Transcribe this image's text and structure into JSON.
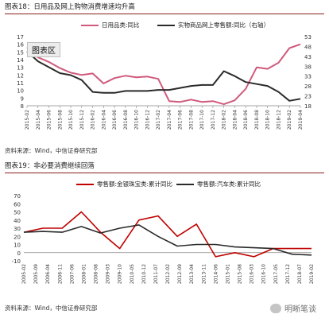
{
  "figures": [
    {
      "id": "fig18",
      "title": "图表18：日用品及网上购物消费增速均升高",
      "source": "资料来源：Wind，中信证券研究部",
      "legend": [
        {
          "label": "日用品类:同比",
          "color": "#d05a7c"
        },
        {
          "label": "实物商品网上零售额:同比（右轴）",
          "color": "#2a2a2a"
        }
      ]
    },
    {
      "id": "fig19",
      "title": "图表19：非必要消费继续回落",
      "source": "资料来源：Wind，中信证券研究部",
      "legend": [
        {
          "label": "零售额:金银珠宝类:累计同比",
          "color": "#c00000"
        },
        {
          "label": "零售额:汽车类:累计同比",
          "color": "#2a2a2a"
        }
      ]
    }
  ],
  "tooltip": "图表区",
  "watermark": "明晰笔谈",
  "chart_data": [
    {
      "type": "line",
      "title": "图表18：日用品及网上购物消费增速均升高",
      "x": [
        "2015-02",
        "2015-04",
        "2015-06",
        "2015-08",
        "2015-10",
        "2015-12",
        "2016-02",
        "2016-04",
        "2016-06",
        "2016-08",
        "2016-10",
        "2016-12",
        "2017-02",
        "2017-04",
        "2017-06",
        "2017-08",
        "2017-10",
        "2017-12",
        "2018-02",
        "2018-04",
        "2018-06",
        "2018-08",
        "2018-10",
        "2018-12",
        "2019-02",
        "2019-04"
      ],
      "ylim": [
        8,
        17
      ],
      "y2lim": [
        18,
        53
      ],
      "yticks": [
        8,
        9,
        10,
        11,
        12,
        13,
        14,
        15,
        16,
        17
      ],
      "y2ticks": [
        18,
        23,
        28,
        33,
        38,
        43,
        48,
        53
      ],
      "series": [
        {
          "name": "日用品类:同比",
          "axis": "left",
          "color": "#d05a7c",
          "values": [
            15.6,
            14.3,
            13.7,
            12.9,
            12.3,
            12.0,
            12.2,
            10.9,
            11.6,
            11.9,
            11.7,
            11.8,
            11.5,
            8.6,
            8.5,
            8.8,
            8.5,
            8.6,
            8.2,
            8.7,
            10.2,
            13.0,
            12.8,
            13.6,
            15.5,
            16.0
          ]
        },
        {
          "name": "实物商品网上零售额:同比（右轴）",
          "axis": "right",
          "color": "#2a2a2a",
          "values": [
            45.5,
            40.5,
            37.5,
            34.5,
            33.5,
            31.0,
            25.0,
            24.5,
            24.5,
            25.5,
            25.5,
            25.5,
            26.0,
            26.0,
            27.0,
            28.0,
            28.5,
            28.5,
            35.5,
            33.0,
            30.0,
            29.0,
            28.0,
            25.0,
            20.5,
            21.5
          ]
        }
      ]
    },
    {
      "type": "line",
      "title": "图表19：非必要消费继续回落",
      "x": [
        "2005-02",
        "2006-01",
        "2006-12",
        "2007-11",
        "2008-10",
        "2009-09",
        "2010-08",
        "2011-07",
        "2012-06",
        "2013-05",
        "2014-04",
        "2015-03",
        "2016-02",
        "2017-01",
        "2017-12",
        "2018-11"
      ],
      "x_ticks": [
        "2005-02",
        "2005-09",
        "2006-04",
        "2006-11",
        "2007-06",
        "2008-01",
        "2008-08",
        "2009-03",
        "2009-10",
        "2010-05",
        "2010-12",
        "2011-07",
        "2012-02",
        "2012-09",
        "2013-04",
        "2013-11",
        "2014-06",
        "2015-01",
        "2015-08",
        "2016-03",
        "2016-10",
        "2017-05",
        "2017-12",
        "2018-07",
        "2019-02"
      ],
      "ylim": [
        -10,
        70
      ],
      "yticks": [
        -10,
        0,
        10,
        20,
        30,
        40,
        50,
        60,
        70
      ],
      "series": [
        {
          "name": "零售额:金银珠宝类:累计同比",
          "color": "#c00000",
          "values": [
            25,
            30,
            30,
            50,
            25,
            5,
            40,
            45,
            20,
            35,
            -5,
            0,
            -5,
            5,
            5,
            5
          ]
        },
        {
          "name": "零售额:汽车类:累计同比",
          "color": "#2a2a2a",
          "values": [
            25,
            26,
            25,
            32,
            24,
            30,
            34,
            20,
            8,
            10,
            10,
            7,
            6,
            5,
            -2,
            -3
          ]
        }
      ]
    }
  ]
}
